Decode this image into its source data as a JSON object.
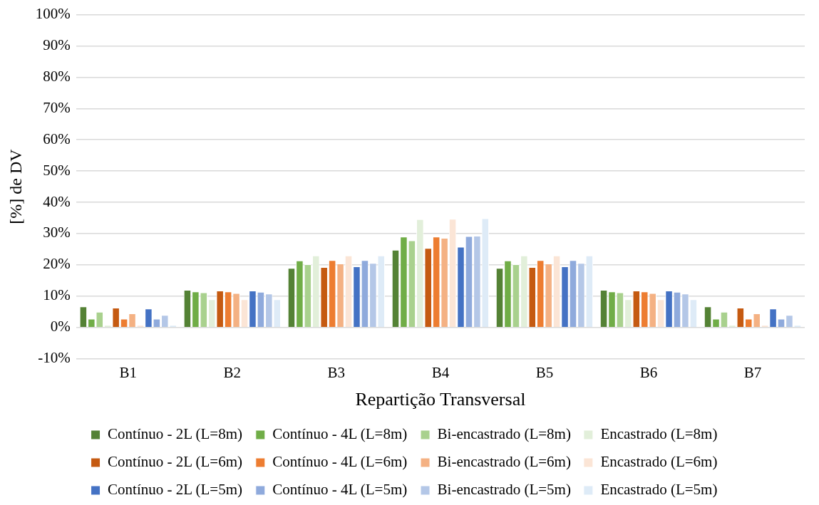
{
  "chart_data": {
    "type": "bar",
    "xlabel": "Repartição Transversal",
    "ylabel": "[%] de DV",
    "categories": [
      "B1",
      "B2",
      "B3",
      "B4",
      "B5",
      "B6",
      "B7"
    ],
    "series": [
      {
        "name": "Contínuo - 2L (L=8m)",
        "color": "#548235",
        "values": [
          6.7,
          12.0,
          19.0,
          24.8,
          19.0,
          12.0,
          6.7
        ]
      },
      {
        "name": "Contínuo - 4L (L=8m)",
        "color": "#70ad47",
        "values": [
          2.8,
          11.5,
          21.4,
          29.0,
          21.4,
          11.5,
          2.8
        ]
      },
      {
        "name": "Bi-encastrado (L=8m)",
        "color": "#a9d18e",
        "values": [
          5.0,
          11.2,
          20.2,
          27.8,
          20.2,
          11.2,
          5.0
        ]
      },
      {
        "name": "Encastrado (L=8m)",
        "color": "#e2efda",
        "values": [
          0.8,
          9.0,
          23.0,
          34.6,
          23.0,
          9.0,
          0.8
        ]
      },
      {
        "name": "Contínuo - 2L (L=6m)",
        "color": "#c55a11",
        "values": [
          6.3,
          11.8,
          19.3,
          25.4,
          19.3,
          11.8,
          6.3
        ]
      },
      {
        "name": "Contínuo - 4L (L=6m)",
        "color": "#ed7d31",
        "values": [
          2.8,
          11.5,
          21.5,
          29.0,
          21.5,
          11.5,
          2.8
        ]
      },
      {
        "name": "Bi-encastrado (L=6m)",
        "color": "#f4b183",
        "values": [
          4.5,
          11.0,
          20.4,
          28.6,
          20.4,
          11.0,
          4.5
        ]
      },
      {
        "name": "Encastrado (L=6m)",
        "color": "#fbe5d6",
        "values": [
          0.8,
          9.0,
          23.0,
          34.7,
          23.0,
          9.0,
          0.8
        ]
      },
      {
        "name": "Contínuo - 2L (L=5m)",
        "color": "#4472c4",
        "values": [
          6.0,
          11.8,
          19.5,
          25.8,
          19.5,
          11.8,
          6.0
        ]
      },
      {
        "name": "Contínuo - 4L (L=5m)",
        "color": "#8faadc",
        "values": [
          2.8,
          11.4,
          21.5,
          29.2,
          21.5,
          11.4,
          2.8
        ]
      },
      {
        "name": "Bi-encastrado (L=5m)",
        "color": "#b4c7e7",
        "values": [
          4.0,
          10.8,
          20.6,
          29.3,
          20.6,
          10.8,
          4.0
        ]
      },
      {
        "name": "Encastrado (L=5m)",
        "color": "#deebf7",
        "values": [
          0.8,
          9.0,
          23.0,
          34.9,
          23.0,
          9.0,
          0.8
        ]
      }
    ],
    "ylim": [
      -10,
      100
    ],
    "yticks": [
      {
        "value": -10,
        "label": "-10%"
      },
      {
        "value": 0,
        "label": "0%"
      },
      {
        "value": 10,
        "label": "10%"
      },
      {
        "value": 20,
        "label": "20%"
      },
      {
        "value": 30,
        "label": "30%"
      },
      {
        "value": 40,
        "label": "40%"
      },
      {
        "value": 50,
        "label": "50%"
      },
      {
        "value": 60,
        "label": "60%"
      },
      {
        "value": 70,
        "label": "70%"
      },
      {
        "value": 80,
        "label": "80%"
      },
      {
        "value": 90,
        "label": "90%"
      },
      {
        "value": 100,
        "label": "100%"
      }
    ],
    "grid": "y",
    "legend": "bottom"
  }
}
